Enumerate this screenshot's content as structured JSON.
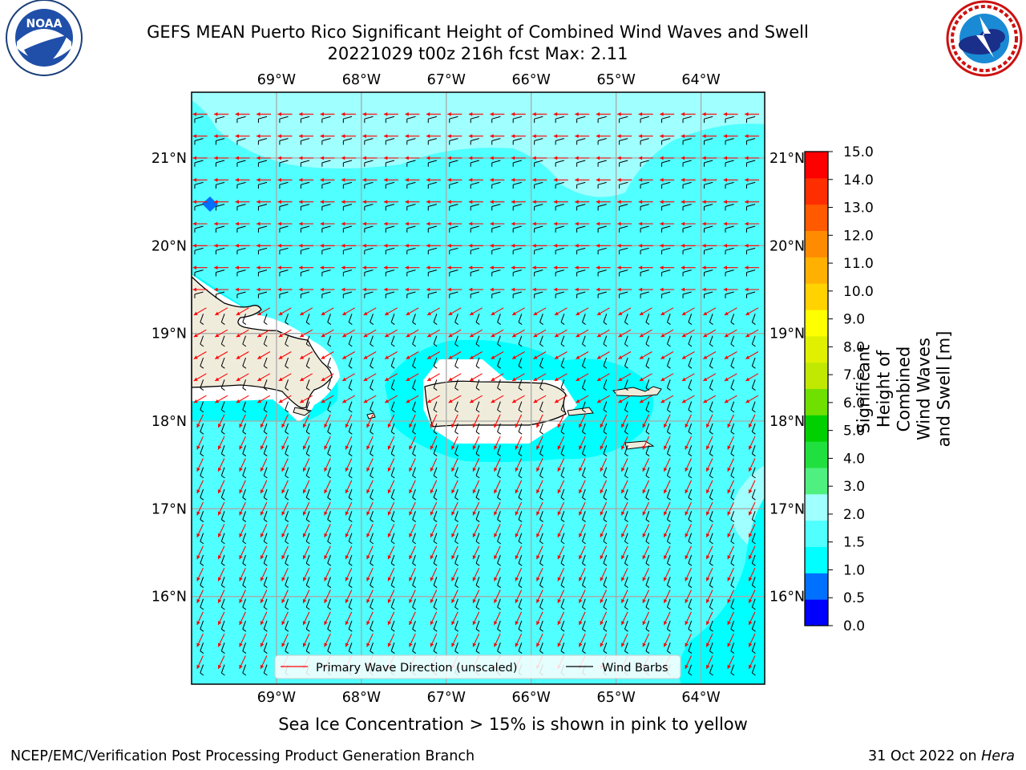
{
  "header": {
    "title_line1": "GEFS MEAN Puerto Rico Significant Height of Combined Wind Waves and Swell",
    "title_line2": "20221029 t00z 216h fcst   Max: 2.11"
  },
  "logos": {
    "noaa": {
      "text": "NOAA",
      "ring_text": "NATIONAL OCEANIC AND ATMOSPHERIC ADMINISTRATION · U.S. DEPARTMENT OF COMMERCE"
    },
    "nws": {
      "ring_text": "NATIONAL WEATHER SERVICE"
    }
  },
  "map": {
    "lon_labels": [
      "69°W",
      "68°W",
      "67°W",
      "66°W",
      "65°W",
      "64°W"
    ],
    "lat_labels": [
      "21°N",
      "20°N",
      "19°N",
      "18°N",
      "17°N",
      "16°N"
    ],
    "lon_range": [
      -70.0,
      -63.25
    ],
    "lat_range": [
      15.0,
      21.75
    ],
    "max_wave_height_m": 2.11
  },
  "legend": {
    "wave_label": "Primary Wave Direction (unscaled)",
    "barb_label": "Wind Barbs",
    "wave_color": "#ff0000",
    "barb_color": "#000000"
  },
  "colorbar": {
    "title_line1": "Significant Height of Combined",
    "title_line2": "Wind Waves and Swell [m]",
    "ticks": [
      "15.0",
      "14.0",
      "13.0",
      "12.0",
      "11.0",
      "10.0",
      "9.0",
      "8.0",
      "7.0",
      "6.0",
      "5.0",
      "4.0",
      "3.0",
      "2.0",
      "1.5",
      "1.0",
      "0.5",
      "0.0"
    ],
    "colors_bottom_to_top": [
      "#0000ff",
      "#0070ff",
      "#00ffff",
      "#50ffff",
      "#a0ffff",
      "#50f080",
      "#20e040",
      "#00d000",
      "#70e000",
      "#c0e800",
      "#e0f000",
      "#ffff00",
      "#ffd200",
      "#ffb000",
      "#ff8c00",
      "#ff5a00",
      "#ff2e00",
      "#ff0000"
    ]
  },
  "footer": {
    "sea_ice_note": "Sea Ice Concentration > 15% is shown in pink to yellow",
    "credit_left": "NCEP/EMC/Verification Post Processing Product Generation Branch",
    "credit_date": "31 Oct 2022 on ",
    "credit_machine": "Hera"
  }
}
